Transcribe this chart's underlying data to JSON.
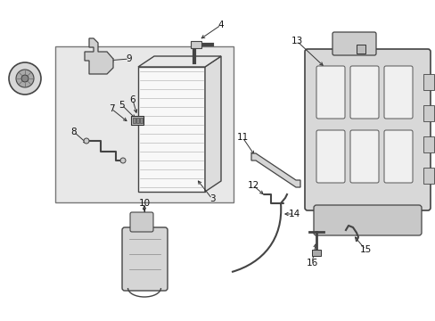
{
  "background_color": "#ffffff",
  "figure_width": 4.89,
  "figure_height": 3.6,
  "dpi": 100,
  "line_color": "#333333",
  "label_color": "#111111",
  "housing_fill": "#e8e8e8",
  "part_fill": "#f2f2f2",
  "label_fontsize": 7.5
}
